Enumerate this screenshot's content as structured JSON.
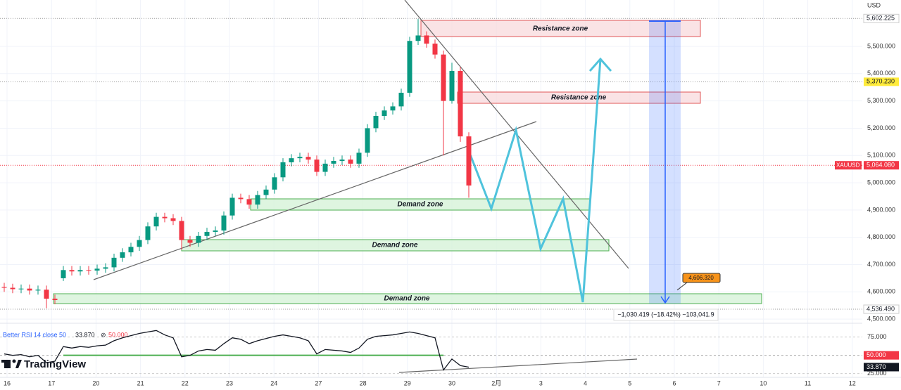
{
  "chart_data": {
    "type": "candlestick",
    "symbol": "XAUUSD",
    "currency": "USD",
    "categories": [
      "16",
      "17",
      "20",
      "21",
      "22",
      "23",
      "24",
      "27",
      "28",
      "29",
      "30",
      "2月",
      "3",
      "4",
      "5",
      "6",
      "7",
      "10",
      "11",
      "12"
    ],
    "open": [
      4618,
      4615,
      4610,
      4612,
      4605,
      4608,
      4575,
      4650,
      4680,
      4675,
      4680,
      4678,
      4685,
      4690,
      4725,
      4745,
      4765,
      4790,
      4840,
      4875,
      4870,
      4860,
      4790,
      4780,
      4805,
      4820,
      4825,
      4880,
      4945,
      4940,
      4920,
      4955,
      4975,
      5020,
      5075,
      5090,
      5095,
      5085,
      5040,
      5070,
      5080,
      5085,
      5070,
      5110,
      5200,
      5245,
      5265,
      5280,
      5330,
      5520,
      5540,
      5510,
      5470,
      5300,
      5410,
      5170
    ],
    "high": [
      4633,
      4630,
      4627,
      4627,
      4623,
      4623,
      4590,
      4695,
      4695,
      4695,
      4695,
      4700,
      4705,
      4740,
      4760,
      4780,
      4805,
      4855,
      4890,
      4890,
      4885,
      4875,
      4805,
      4820,
      4835,
      4840,
      4895,
      4960,
      4960,
      4955,
      4970,
      4990,
      5035,
      5090,
      5105,
      5110,
      5110,
      5100,
      5085,
      5095,
      5100,
      5100,
      5125,
      5215,
      5260,
      5280,
      5295,
      5345,
      5535,
      5600,
      5555,
      5525,
      5485,
      5440,
      5425,
      5185
    ],
    "low": [
      4600,
      4595,
      4595,
      4590,
      4590,
      4540,
      4555,
      4640,
      4660,
      4660,
      4663,
      4663,
      4670,
      4675,
      4710,
      4730,
      4750,
      4775,
      4825,
      4855,
      4845,
      4755,
      4765,
      4765,
      4790,
      4805,
      4810,
      4865,
      4925,
      4905,
      4905,
      4940,
      4960,
      5005,
      5060,
      5075,
      5070,
      5025,
      5025,
      5055,
      5065,
      5055,
      5055,
      5095,
      5185,
      5230,
      5250,
      5265,
      5315,
      5505,
      5495,
      5455,
      5100,
      5290,
      5150,
      4945
    ],
    "close": [
      4615,
      4610,
      4612,
      4605,
      4608,
      4575,
      4570,
      4680,
      4675,
      4680,
      4678,
      4685,
      4690,
      4725,
      4745,
      4765,
      4790,
      4840,
      4875,
      4870,
      4860,
      4790,
      4780,
      4805,
      4820,
      4825,
      4880,
      4945,
      4940,
      4920,
      4955,
      4975,
      5020,
      5075,
      5090,
      5095,
      5085,
      5040,
      5070,
      5080,
      5085,
      5070,
      5110,
      5200,
      5245,
      5265,
      5280,
      5330,
      5520,
      5540,
      5510,
      5470,
      5300,
      5410,
      5170,
      4990
    ],
    "up_color": "#089981",
    "down_color": "#f23645",
    "ylim": [
      4485,
      5670
    ],
    "yticks": [
      {
        "value": 4500,
        "label": "4,500.000"
      },
      {
        "value": 4600,
        "label": "4,600.000"
      },
      {
        "value": 4700,
        "label": "4,700.000"
      },
      {
        "value": 4800,
        "label": "4,800.000"
      },
      {
        "value": 4900,
        "label": "4,900.000"
      },
      {
        "value": 5000,
        "label": "5,000.000"
      },
      {
        "value": 5100,
        "label": "5,100.000"
      },
      {
        "value": 5200,
        "label": "5,200.000"
      },
      {
        "value": 5300,
        "label": "5,300.000"
      },
      {
        "value": 5400,
        "label": "5,400.000"
      },
      {
        "value": 5500,
        "label": "5,500.000"
      }
    ],
    "price_labels": [
      {
        "value": 5602.225,
        "label": "5,602.225"
      },
      {
        "value": 5370.23,
        "label": "5,370.230"
      },
      {
        "value": 5064.08,
        "label": "5,064.080"
      },
      {
        "value": 4536.49,
        "label": "4,536.490"
      }
    ],
    "indicator": {
      "type": "line",
      "name": "Better RSI 14 close 50",
      "color": "#131722",
      "values": [
        52,
        50,
        51,
        48,
        50,
        40,
        42,
        62,
        60,
        62,
        61,
        63,
        64,
        70,
        74,
        77,
        80,
        82,
        84,
        78,
        74,
        48,
        50,
        56,
        58,
        57,
        66,
        74,
        72,
        66,
        70,
        73,
        76,
        78,
        76,
        74,
        70,
        52,
        58,
        57,
        56,
        54,
        60,
        72,
        76,
        77,
        78,
        80,
        82,
        80,
        77,
        74,
        30,
        45,
        36,
        33.87
      ],
      "last_label": "33.870",
      "level": {
        "value": 50,
        "label": "50.000"
      },
      "level_color": "#4caf50",
      "ylim": [
        17,
        92
      ],
      "yticks": [
        {
          "value": 75,
          "label": "75.000"
        },
        {
          "value": 25,
          "label": "25.000"
        }
      ]
    }
  },
  "annotations": {
    "resistance_zones": [
      "Resistance  zone",
      "Resistance  zone"
    ],
    "demand_zones": [
      "Demand zone",
      "Demand zone",
      "Demand zone"
    ],
    "measure": "−1,030.419 (−18.42%) −103,041.9",
    "target": {
      "value": 4606.32,
      "label": "4,606.320"
    }
  },
  "branding": "TradingView"
}
